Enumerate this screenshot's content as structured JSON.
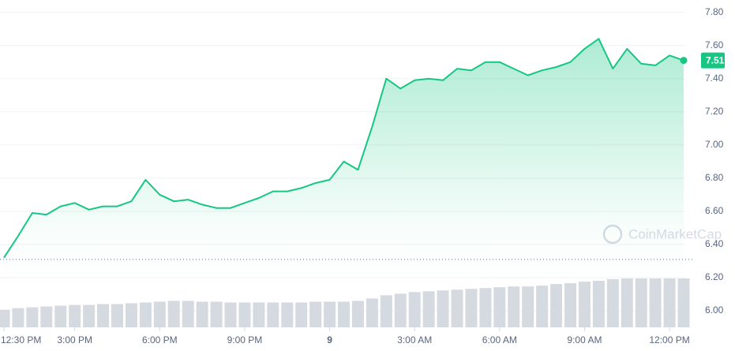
{
  "chart_data": {
    "type": "line",
    "watermark": "CoinMarketCap",
    "categories": [
      "12:30 PM",
      null,
      null,
      null,
      null,
      "3:00 PM",
      null,
      null,
      null,
      null,
      null,
      "6:00 PM",
      null,
      null,
      null,
      null,
      null,
      "9:00 PM",
      null,
      null,
      null,
      null,
      null,
      "9",
      null,
      null,
      null,
      null,
      null,
      "3:00 AM",
      null,
      null,
      null,
      null,
      null,
      "6:00 AM",
      null,
      null,
      null,
      null,
      null,
      "9:00 AM",
      null,
      null,
      null,
      null,
      null,
      "12:00 PM",
      null
    ],
    "series": [
      {
        "color": "#16c784",
        "values": [
          6.32,
          6.45,
          6.59,
          6.58,
          6.63,
          6.65,
          6.61,
          6.63,
          6.63,
          6.66,
          6.79,
          6.7,
          6.66,
          6.67,
          6.64,
          6.62,
          6.62,
          6.65,
          6.68,
          6.72,
          6.72,
          6.74,
          6.77,
          6.79,
          6.9,
          6.85,
          7.11,
          7.4,
          7.34,
          7.39,
          7.4,
          7.39,
          7.46,
          7.45,
          7.5,
          7.5,
          7.46,
          7.42,
          7.45,
          7.47,
          7.5,
          7.58,
          7.64,
          7.46,
          7.58,
          7.49,
          7.48,
          7.54,
          7.51
        ]
      }
    ],
    "volume": {
      "color": "#d5d9e0",
      "values": [
        22,
        24,
        25,
        26,
        27,
        28,
        28,
        29,
        29,
        30,
        31,
        32,
        33,
        33,
        32,
        32,
        31,
        31,
        31,
        31,
        31,
        31,
        32,
        32,
        32,
        33,
        36,
        40,
        42,
        44,
        45,
        46,
        47,
        48,
        49,
        50,
        51,
        51,
        52,
        54,
        55,
        57,
        58,
        60,
        61,
        61,
        61,
        61,
        61
      ]
    },
    "baseline": 6.31,
    "current_price": {
      "value": 7.51,
      "label": "7.51"
    },
    "ylim": [
      5.9,
      7.86
    ],
    "yticks": [
      {
        "value": 6.0,
        "label": "6.00"
      },
      {
        "value": 6.2,
        "label": "6.20"
      },
      {
        "value": 6.4,
        "label": "6.40"
      },
      {
        "value": 6.6,
        "label": "6.60"
      },
      {
        "value": 6.8,
        "label": "6.80"
      },
      {
        "value": 7.0,
        "label": "7.00"
      },
      {
        "value": 7.2,
        "label": "7.20"
      },
      {
        "value": 7.4,
        "label": "7.40"
      },
      {
        "value": 7.6,
        "label": "7.60"
      },
      {
        "value": 7.8,
        "label": "7.80"
      }
    ],
    "grid": true
  }
}
